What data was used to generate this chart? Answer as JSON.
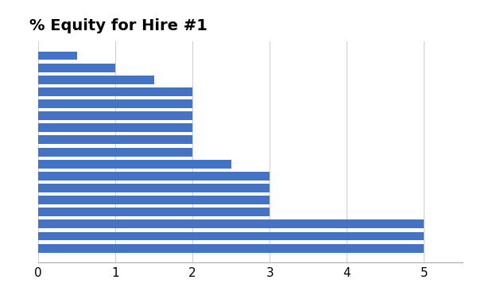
{
  "title": "% Equity for Hire #1",
  "bar_values": [
    0.5,
    1.0,
    1.5,
    2.0,
    2.0,
    2.0,
    2.0,
    2.0,
    2.0,
    2.5,
    3.0,
    3.0,
    3.0,
    3.0,
    5.0,
    5.0,
    5.0
  ],
  "bar_color": "#4472C4",
  "xlim": [
    0,
    5.5
  ],
  "xticks": [
    0,
    1,
    2,
    3,
    4,
    5
  ],
  "background_color": "#ffffff",
  "title_fontsize": 14,
  "grid_color": "#d0d0d0"
}
